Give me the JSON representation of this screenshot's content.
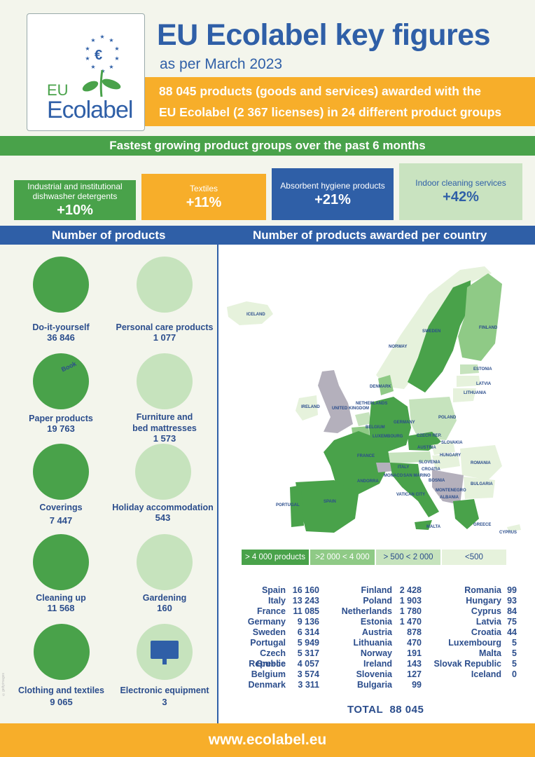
{
  "header": {
    "logo_eu": "EU",
    "logo_brand": "Ecolabel",
    "logo_symbol": "€",
    "title": "EU Ecolabel key figures",
    "subtitle": "as per March 2023",
    "summary_line1": "88 045 products (goods and services) awarded with the",
    "summary_line2": "EU Ecolabel (2 367 licenses) in 24 different product groups"
  },
  "growth": {
    "heading": "Fastest growing product groups over the past 6 months",
    "tiles": [
      {
        "label_line1": "Industrial and institutional",
        "label_line2": "dishwasher detergents",
        "value": "+10%",
        "bg": "#49a24a",
        "fg": "#ffffff"
      },
      {
        "label_line1": "Textiles",
        "label_line2": "",
        "value": "+11%",
        "bg": "#f7ae2a",
        "fg": "#ffffff"
      },
      {
        "label_line1": "Absorbent hygiene products",
        "label_line2": "",
        "value": "+21%",
        "bg": "#2f5fa7",
        "fg": "#ffffff"
      },
      {
        "label_line1": "Indoor cleaning services",
        "label_line2": "",
        "value": "+42%",
        "bg": "#c9e3c0",
        "fg": "#2f5fa7"
      }
    ]
  },
  "sections": {
    "products_heading": "Number of products",
    "country_heading": "Number of products awarded per country"
  },
  "categories": [
    {
      "name_line1": "Do-it-yourself",
      "name_line2": "",
      "count": "36 846",
      "icon": "paint-can-icon",
      "book_text": ""
    },
    {
      "name_line1": "Personal care products",
      "name_line2": "",
      "count": "1 077",
      "icon": "lotion-bottle-icon",
      "book_text": ""
    },
    {
      "name_line1": "Paper products",
      "name_line2": "",
      "count": "19 763",
      "icon": "book-tissue-icon",
      "book_text": "Book"
    },
    {
      "name_line1": "Furniture and",
      "name_line2": "bed mattresses",
      "count": "1 573",
      "icon": "bed-chair-icon",
      "book_text": ""
    },
    {
      "name_line1": "Coverings",
      "name_line2": "",
      "count": "7 447",
      "icon": "floor-worker-icon",
      "book_text": ""
    },
    {
      "name_line1": "Holiday accommodation",
      "name_line2": "",
      "count": "543",
      "icon": "beach-house-icon",
      "book_text": ""
    },
    {
      "name_line1": "Cleaning up",
      "name_line2": "",
      "count": "11 568",
      "icon": "mop-person-icon",
      "book_text": ""
    },
    {
      "name_line1": "Gardening",
      "name_line2": "",
      "count": "160",
      "icon": "watering-can-icon",
      "book_text": ""
    },
    {
      "name_line1": "Clothing and textiles",
      "name_line2": "",
      "count": "9 065",
      "icon": "clothes-icon",
      "book_text": ""
    },
    {
      "name_line1": "Electronic equipment",
      "name_line2": "",
      "count": "3",
      "icon": "monitor-icon",
      "book_text": ""
    }
  ],
  "map": {
    "labels": [
      "ICELAND",
      "SWEDEN",
      "FINLAND",
      "NORWAY",
      "ESTONIA",
      "LATVIA",
      "LITHUANIA",
      "DENMARK",
      "UNITED KINGDOM",
      "IRELAND",
      "NETHERLANDS",
      "BELGIUM",
      "LUXEMBOURG",
      "GERMANY",
      "POLAND",
      "CZECH REP.",
      "SLOVAKIA",
      "AUSTRIA",
      "HUNGARY",
      "ROMANIA",
      "SLOVENIA",
      "CROATIA",
      "BULGARIA",
      "FRANCE",
      "ITALY",
      "PORTUGAL",
      "SPAIN",
      "GREECE",
      "MALTA",
      "CYPRUS",
      "ANDORRA",
      "SAN MARINO",
      "VATICAN CITY",
      "MONACO",
      "MONTENEGRO",
      "ALBANIA",
      "BOSNIA"
    ]
  },
  "legend": [
    {
      "label": "> 4 000 products",
      "bg": "#49a24a",
      "fg": "#ffffff"
    },
    {
      "label": ">2 000 < 4 000",
      "bg": "#8fca86",
      "fg": "#ffffff"
    },
    {
      "label": "> 500 < 2 000",
      "bg": "#c6e3bd",
      "fg": "#2b4d8c"
    },
    {
      "label": "<500",
      "bg": "#e6f2dc",
      "fg": "#2b4d8c"
    }
  ],
  "countries": {
    "col1": [
      {
        "name": "Spain",
        "value": "16 160"
      },
      {
        "name": "Italy",
        "value": "13 243"
      },
      {
        "name": "France",
        "value": "11 085"
      },
      {
        "name": "Germany",
        "value": "9 136"
      },
      {
        "name": "Sweden",
        "value": "6 314"
      },
      {
        "name": "Portugal",
        "value": "5 949"
      },
      {
        "name": "Czech Republic",
        "value": "5 317"
      },
      {
        "name": "Greece",
        "value": "4 057"
      },
      {
        "name": "Belgium",
        "value": "3 574"
      },
      {
        "name": "Denmark",
        "value": "3 311"
      }
    ],
    "col2": [
      {
        "name": "Finland",
        "value": "2 428"
      },
      {
        "name": "Poland",
        "value": "1 903"
      },
      {
        "name": "Netherlands",
        "value": "1 780"
      },
      {
        "name": "Estonia",
        "value": "1 470"
      },
      {
        "name": "Austria",
        "value": "878"
      },
      {
        "name": "Lithuania",
        "value": "470"
      },
      {
        "name": "Norway",
        "value": "191"
      },
      {
        "name": "Ireland",
        "value": "143"
      },
      {
        "name": "Slovenia",
        "value": "127"
      },
      {
        "name": "Bulgaria",
        "value": "99"
      }
    ],
    "col3": [
      {
        "name": "Romania",
        "value": "99"
      },
      {
        "name": "Hungary",
        "value": "93"
      },
      {
        "name": "Cyprus",
        "value": "84"
      },
      {
        "name": "Latvia",
        "value": "75"
      },
      {
        "name": "Croatia",
        "value": "44"
      },
      {
        "name": "Luxembourg",
        "value": "5"
      },
      {
        "name": "Malta",
        "value": "5"
      },
      {
        "name": "Slovak Republic",
        "value": "5"
      },
      {
        "name": "Iceland",
        "value": "0"
      }
    ]
  },
  "total": {
    "label": "TOTAL",
    "value": "88 045"
  },
  "footer": {
    "url": "www.ecolabel.eu"
  },
  "credit": {
    "text": "©gettyimages"
  }
}
